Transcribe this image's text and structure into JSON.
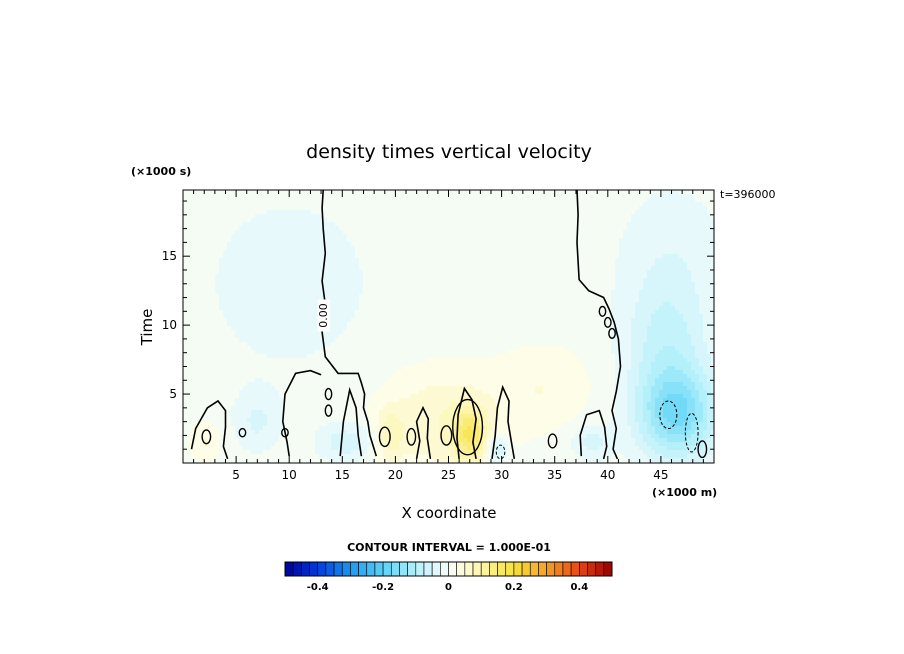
{
  "chart_data": {
    "type": "heatmap",
    "title": "density times vertical velocity",
    "xlabel": "X coordinate",
    "ylabel": "Time",
    "x_unit": "(×1000 m)",
    "y_unit": "(×1000 s)",
    "time_stamp": "t=396000",
    "xlim": [
      0,
      50
    ],
    "ylim": [
      0,
      19.8
    ],
    "xticks": [
      5,
      10,
      15,
      20,
      25,
      30,
      35,
      40,
      45
    ],
    "yticks": [
      5,
      10,
      15
    ],
    "contour_interval_text": "CONTOUR INTERVAL = 1.000E-01",
    "contour_label": "0.00",
    "colorbar": {
      "min": -0.5,
      "max": 0.5,
      "ticks": [
        "-0.4",
        "-0.2",
        "0",
        "0.2",
        "0.4"
      ],
      "tick_values": [
        -0.4,
        -0.2,
        0,
        0.2,
        0.4
      ]
    },
    "blobs": [
      {
        "x": 46.5,
        "y": 3.5,
        "rx": 3.6,
        "ry": 3.2,
        "v": -0.16
      },
      {
        "x": 45.5,
        "y": 8.5,
        "rx": 3.8,
        "ry": 4.5,
        "v": -0.07
      },
      {
        "x": 46.0,
        "y": 15.0,
        "rx": 5.0,
        "ry": 5.0,
        "v": -0.03
      },
      {
        "x": 27.0,
        "y": 2.0,
        "rx": 1.6,
        "ry": 2.0,
        "v": 0.13
      },
      {
        "x": 24.0,
        "y": 3.0,
        "rx": 6.0,
        "ry": 3.8,
        "v": 0.06
      },
      {
        "x": 34.0,
        "y": 5.5,
        "rx": 4.5,
        "ry": 3.0,
        "v": 0.035
      },
      {
        "x": 19.5,
        "y": 2.0,
        "rx": 1.2,
        "ry": 1.8,
        "v": 0.06
      },
      {
        "x": 15.5,
        "y": 1.5,
        "rx": 2.5,
        "ry": 1.3,
        "v": -0.06
      },
      {
        "x": 29.5,
        "y": 1.0,
        "rx": 1.0,
        "ry": 1.0,
        "v": -0.08
      },
      {
        "x": 7.0,
        "y": 3.0,
        "rx": 2.0,
        "ry": 2.0,
        "v": -0.04
      },
      {
        "x": 10.0,
        "y": 13.0,
        "rx": 10.0,
        "ry": 8.0,
        "v": -0.02
      },
      {
        "x": 2.0,
        "y": 1.5,
        "rx": 1.5,
        "ry": 1.5,
        "v": 0.04
      },
      {
        "x": 38.5,
        "y": 1.5,
        "rx": 1.8,
        "ry": 1.2,
        "v": -0.05
      }
    ],
    "zero_contours": [
      [
        [
          13.2,
          19.8
        ],
        [
          13.1,
          18.5
        ],
        [
          13.2,
          17.0
        ],
        [
          13.4,
          15.2
        ],
        [
          13.1,
          13.2
        ],
        [
          13.4,
          11.5
        ],
        [
          13.1,
          9.5
        ],
        [
          13.4,
          7.7
        ],
        [
          14.6,
          6.5
        ],
        [
          16.5,
          6.5
        ],
        [
          16.8,
          5.8
        ],
        [
          17.1,
          5.0
        ],
        [
          17.0,
          4.0
        ],
        [
          17.4,
          3.0
        ],
        [
          17.6,
          2.0
        ],
        [
          18.2,
          0.5
        ]
      ],
      [
        [
          10.0,
          0.5
        ],
        [
          9.8,
          1.5
        ],
        [
          9.4,
          3.0
        ],
        [
          9.6,
          5.0
        ],
        [
          10.6,
          6.5
        ],
        [
          12.0,
          6.7
        ],
        [
          13.0,
          6.4
        ]
      ],
      [
        [
          0.8,
          1.0
        ],
        [
          1.2,
          2.5
        ],
        [
          2.3,
          4.0
        ],
        [
          3.3,
          4.5
        ],
        [
          4.0,
          3.8
        ],
        [
          4.0,
          2.6
        ],
        [
          3.8,
          1.2
        ],
        [
          4.2,
          0.3
        ]
      ],
      [
        [
          37.1,
          19.8
        ],
        [
          37.2,
          18.0
        ],
        [
          37.1,
          16.0
        ],
        [
          37.2,
          14.6
        ],
        [
          37.3,
          13.3
        ],
        [
          38.2,
          12.5
        ],
        [
          39.6,
          12.0
        ],
        [
          40.1,
          11.2
        ],
        [
          40.6,
          10.2
        ],
        [
          41.0,
          9.0
        ],
        [
          41.2,
          7.0
        ],
        [
          40.8,
          5.2
        ],
        [
          40.4,
          3.8
        ],
        [
          40.8,
          2.5
        ],
        [
          40.5,
          1.0
        ],
        [
          40.9,
          0.3
        ]
      ],
      [
        [
          22.0,
          0.3
        ],
        [
          22.3,
          1.6
        ],
        [
          22.0,
          3.0
        ],
        [
          22.6,
          4.0
        ],
        [
          23.1,
          3.2
        ],
        [
          23.0,
          1.8
        ],
        [
          23.3,
          0.3
        ]
      ],
      [
        [
          26.0,
          0.3
        ],
        [
          25.8,
          1.8
        ],
        [
          25.9,
          3.5
        ],
        [
          26.5,
          5.4
        ],
        [
          27.2,
          4.6
        ],
        [
          27.6,
          3.2
        ],
        [
          27.3,
          1.5
        ],
        [
          27.6,
          0.3
        ]
      ],
      [
        [
          29.1,
          0.3
        ],
        [
          29.4,
          2.0
        ],
        [
          29.6,
          4.0
        ],
        [
          30.1,
          5.5
        ],
        [
          30.7,
          4.5
        ],
        [
          30.6,
          3.0
        ],
        [
          30.9,
          1.6
        ],
        [
          31.2,
          0.3
        ]
      ],
      [
        [
          37.5,
          0.5
        ],
        [
          37.4,
          2.0
        ],
        [
          38.0,
          3.5
        ],
        [
          39.2,
          3.8
        ],
        [
          39.7,
          2.6
        ],
        [
          39.9,
          1.2
        ],
        [
          39.6,
          0.3
        ]
      ],
      [
        [
          14.8,
          0.5
        ],
        [
          15.1,
          3.0
        ],
        [
          15.7,
          5.3
        ],
        [
          16.3,
          4.0
        ],
        [
          16.5,
          2.0
        ],
        [
          16.8,
          0.5
        ]
      ]
    ],
    "zero_loops": [
      {
        "x": 2.2,
        "y": 1.9,
        "rx": 0.4,
        "ry": 0.5
      },
      {
        "x": 5.6,
        "y": 2.2,
        "rx": 0.3,
        "ry": 0.3
      },
      {
        "x": 9.6,
        "y": 2.2,
        "rx": 0.3,
        "ry": 0.3
      },
      {
        "x": 19.0,
        "y": 1.9,
        "rx": 0.5,
        "ry": 0.7
      },
      {
        "x": 21.5,
        "y": 1.9,
        "rx": 0.4,
        "ry": 0.6
      },
      {
        "x": 24.8,
        "y": 2.0,
        "rx": 0.5,
        "ry": 0.7
      },
      {
        "x": 26.8,
        "y": 2.6,
        "rx": 1.4,
        "ry": 2.0
      },
      {
        "x": 13.7,
        "y": 3.8,
        "rx": 0.3,
        "ry": 0.4
      },
      {
        "x": 13.7,
        "y": 5.0,
        "rx": 0.3,
        "ry": 0.4
      },
      {
        "x": 34.8,
        "y": 1.6,
        "rx": 0.4,
        "ry": 0.5
      },
      {
        "x": 39.5,
        "y": 11.0,
        "rx": 0.3,
        "ry": 0.35
      },
      {
        "x": 40.0,
        "y": 10.2,
        "rx": 0.3,
        "ry": 0.35
      },
      {
        "x": 40.4,
        "y": 9.4,
        "rx": 0.3,
        "ry": 0.35
      },
      {
        "x": 48.9,
        "y": 1.0,
        "rx": 0.4,
        "ry": 0.6
      }
    ],
    "negative_contours": [
      {
        "x": 45.7,
        "y": 3.5,
        "rx": 0.8,
        "ry": 1.0
      },
      {
        "x": 47.9,
        "y": 2.2,
        "rx": 0.6,
        "ry": 1.4
      },
      {
        "x": 29.9,
        "y": 0.8,
        "rx": 0.4,
        "ry": 0.5
      }
    ]
  }
}
